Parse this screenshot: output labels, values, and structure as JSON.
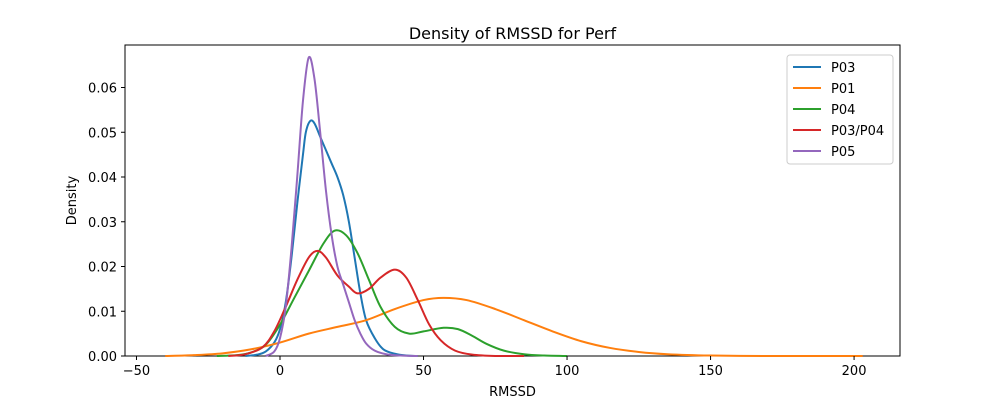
{
  "chart_data": {
    "type": "line",
    "title": "Density of RMSSD for Perf",
    "xlabel": "RMSSD",
    "ylabel": "Density",
    "xlim": [
      -54,
      216
    ],
    "ylim": [
      0,
      0.0695
    ],
    "xticks": [
      -50,
      0,
      50,
      100,
      150,
      200
    ],
    "yticks": [
      0.0,
      0.01,
      0.02,
      0.03,
      0.04,
      0.05,
      0.06
    ],
    "ytick_labels": [
      "0.00",
      "0.01",
      "0.02",
      "0.03",
      "0.04",
      "0.05",
      "0.06"
    ],
    "xtick_labels": [
      "−50",
      "0",
      "50",
      "100",
      "150",
      "200"
    ],
    "grid": false,
    "legend_position": "top-right",
    "series": [
      {
        "name": "P03",
        "color": "#1f77b4",
        "points": [
          [
            -12,
            0.0
          ],
          [
            -8,
            0.0003
          ],
          [
            -5,
            0.001
          ],
          [
            -2,
            0.003
          ],
          [
            0,
            0.006
          ],
          [
            2,
            0.012
          ],
          [
            4,
            0.022
          ],
          [
            6,
            0.034
          ],
          [
            8,
            0.045
          ],
          [
            9,
            0.05
          ],
          [
            10.5,
            0.0525
          ],
          [
            12,
            0.052
          ],
          [
            14,
            0.049
          ],
          [
            16,
            0.046
          ],
          [
            18,
            0.043
          ],
          [
            20,
            0.04
          ],
          [
            22,
            0.036
          ],
          [
            24,
            0.03
          ],
          [
            26,
            0.022
          ],
          [
            28,
            0.014
          ],
          [
            30,
            0.008
          ],
          [
            33,
            0.004
          ],
          [
            36,
            0.0015
          ],
          [
            40,
            0.0005
          ],
          [
            44,
            0.0001
          ],
          [
            48,
            0.0
          ]
        ]
      },
      {
        "name": "P01",
        "color": "#ff7f0e",
        "points": [
          [
            -40,
            0.0
          ],
          [
            -30,
            0.0002
          ],
          [
            -20,
            0.0006
          ],
          [
            -10,
            0.0015
          ],
          [
            0,
            0.003
          ],
          [
            10,
            0.005
          ],
          [
            20,
            0.0065
          ],
          [
            30,
            0.008
          ],
          [
            40,
            0.0105
          ],
          [
            50,
            0.0125
          ],
          [
            57,
            0.013
          ],
          [
            65,
            0.0125
          ],
          [
            75,
            0.0105
          ],
          [
            85,
            0.008
          ],
          [
            95,
            0.0055
          ],
          [
            105,
            0.0033
          ],
          [
            115,
            0.0018
          ],
          [
            125,
            0.0009
          ],
          [
            135,
            0.0004
          ],
          [
            150,
            0.0001
          ],
          [
            170,
            0.0
          ],
          [
            185,
            0.0
          ],
          [
            203,
            0.0
          ]
        ]
      },
      {
        "name": "P04",
        "color": "#2ca02c",
        "points": [
          [
            -22,
            0.0
          ],
          [
            -15,
            0.0002
          ],
          [
            -10,
            0.0008
          ],
          [
            -5,
            0.0025
          ],
          [
            0,
            0.007
          ],
          [
            5,
            0.013
          ],
          [
            10,
            0.019
          ],
          [
            15,
            0.025
          ],
          [
            19,
            0.028
          ],
          [
            23,
            0.027
          ],
          [
            27,
            0.023
          ],
          [
            31,
            0.017
          ],
          [
            35,
            0.011
          ],
          [
            40,
            0.0065
          ],
          [
            45,
            0.005
          ],
          [
            50,
            0.0055
          ],
          [
            57,
            0.0063
          ],
          [
            62,
            0.006
          ],
          [
            67,
            0.0045
          ],
          [
            72,
            0.0027
          ],
          [
            78,
            0.0012
          ],
          [
            85,
            0.0004
          ],
          [
            92,
            0.0001
          ],
          [
            100,
            0.0
          ]
        ]
      },
      {
        "name": "P03/P04",
        "color": "#d62728",
        "points": [
          [
            -18,
            0.0
          ],
          [
            -12,
            0.0004
          ],
          [
            -6,
            0.002
          ],
          [
            -2,
            0.0055
          ],
          [
            2,
            0.011
          ],
          [
            6,
            0.017
          ],
          [
            10,
            0.022
          ],
          [
            13,
            0.0235
          ],
          [
            16,
            0.022
          ],
          [
            20,
            0.018
          ],
          [
            24,
            0.0155
          ],
          [
            27,
            0.014
          ],
          [
            31,
            0.015
          ],
          [
            35,
            0.0175
          ],
          [
            40,
            0.0193
          ],
          [
            44,
            0.0175
          ],
          [
            48,
            0.0125
          ],
          [
            52,
            0.007
          ],
          [
            56,
            0.0035
          ],
          [
            61,
            0.0012
          ],
          [
            67,
            0.0003
          ],
          [
            75,
            0.0
          ],
          [
            85,
            0.0
          ]
        ]
      },
      {
        "name": "P05",
        "color": "#9467bd",
        "points": [
          [
            -5,
            0.0
          ],
          [
            -2,
            0.001
          ],
          [
            0,
            0.004
          ],
          [
            2,
            0.011
          ],
          [
            4,
            0.024
          ],
          [
            6,
            0.04
          ],
          [
            8,
            0.057
          ],
          [
            10,
            0.0667
          ],
          [
            12,
            0.062
          ],
          [
            14,
            0.05
          ],
          [
            16,
            0.037
          ],
          [
            18,
            0.027
          ],
          [
            20,
            0.02
          ],
          [
            22,
            0.016
          ],
          [
            24,
            0.012
          ],
          [
            26,
            0.008
          ],
          [
            28,
            0.005
          ],
          [
            30,
            0.0028
          ],
          [
            33,
            0.0012
          ],
          [
            37,
            0.0004
          ],
          [
            42,
            0.0001
          ],
          [
            48,
            0.0
          ]
        ]
      }
    ]
  }
}
